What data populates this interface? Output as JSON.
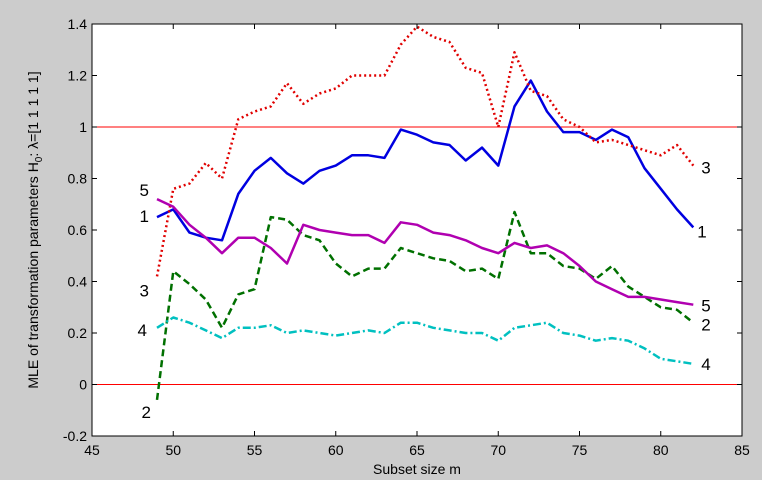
{
  "chart_data": {
    "type": "line",
    "title": "",
    "xlabel": "Subset size m",
    "ylabel": "MLE of transformation parameters H",
    "ylabel_sub": "0",
    "ylabel_tail": ": λ=[1 1 1 1 1]",
    "xlim": [
      45,
      85
    ],
    "ylim": [
      -0.2,
      1.4
    ],
    "xticks": [
      45,
      50,
      55,
      60,
      65,
      70,
      75,
      80,
      85
    ],
    "yticks": [
      -0.2,
      0,
      0.2,
      0.4,
      0.6,
      0.8,
      1,
      1.2,
      1.4
    ],
    "xtick_labels": [
      "45",
      "50",
      "55",
      "60",
      "65",
      "70",
      "75",
      "80",
      "85"
    ],
    "ytick_labels": [
      "-0.2",
      "0",
      "0.2",
      "0.4",
      "0.6",
      "0.8",
      "1",
      "1.2",
      "1.4"
    ],
    "reference_lines": [
      0,
      1
    ],
    "reference_color": "#ff0000",
    "x": [
      49,
      50,
      51,
      52,
      53,
      54,
      55,
      56,
      57,
      58,
      59,
      60,
      61,
      62,
      63,
      64,
      65,
      66,
      67,
      68,
      69,
      70,
      71,
      72,
      73,
      74,
      75,
      76,
      77,
      78,
      79,
      80,
      81,
      82
    ],
    "series": [
      {
        "name": "1",
        "color": "#0000e0",
        "dash": "",
        "width": 2.5,
        "values": [
          0.65,
          0.68,
          0.59,
          0.57,
          0.56,
          0.74,
          0.83,
          0.88,
          0.82,
          0.78,
          0.83,
          0.85,
          0.89,
          0.89,
          0.88,
          0.99,
          0.97,
          0.94,
          0.93,
          0.87,
          0.92,
          0.85,
          1.08,
          1.18,
          1.06,
          0.98,
          0.98,
          0.95,
          0.99,
          0.96,
          0.84,
          0.76,
          0.68,
          0.61
        ],
        "label_left": "1",
        "label_right": "1"
      },
      {
        "name": "2",
        "color": "#007000",
        "dash": "7,4",
        "width": 2.5,
        "values": [
          -0.06,
          0.44,
          0.39,
          0.33,
          0.22,
          0.35,
          0.37,
          0.65,
          0.64,
          0.58,
          0.56,
          0.47,
          0.42,
          0.45,
          0.45,
          0.53,
          0.51,
          0.49,
          0.48,
          0.44,
          0.45,
          0.41,
          0.67,
          0.51,
          0.51,
          0.46,
          0.45,
          0.41,
          0.46,
          0.38,
          0.34,
          0.3,
          0.29,
          0.24
        ],
        "label_left": "2",
        "label_right": "2"
      },
      {
        "name": "3",
        "color": "#e00000",
        "dash": "2,3",
        "width": 2.5,
        "values": [
          0.42,
          0.76,
          0.78,
          0.86,
          0.8,
          1.03,
          1.06,
          1.08,
          1.17,
          1.09,
          1.13,
          1.15,
          1.2,
          1.2,
          1.2,
          1.32,
          1.39,
          1.35,
          1.33,
          1.23,
          1.21,
          1.0,
          1.29,
          1.14,
          1.12,
          1.03,
          1.0,
          0.94,
          0.95,
          0.93,
          0.91,
          0.89,
          0.93,
          0.85
        ],
        "label_left": "3",
        "label_right": "3"
      },
      {
        "name": "4",
        "color": "#00c0c0",
        "dash": "8,3,2,3",
        "width": 2.5,
        "values": [
          0.22,
          0.26,
          0.24,
          0.21,
          0.18,
          0.22,
          0.22,
          0.23,
          0.2,
          0.21,
          0.2,
          0.19,
          0.2,
          0.21,
          0.2,
          0.24,
          0.24,
          0.22,
          0.21,
          0.2,
          0.2,
          0.17,
          0.22,
          0.23,
          0.24,
          0.2,
          0.19,
          0.17,
          0.18,
          0.17,
          0.14,
          0.1,
          0.09,
          0.08
        ],
        "label_left": "4",
        "label_right": "4"
      },
      {
        "name": "5",
        "color": "#b000b0",
        "dash": "",
        "width": 2.5,
        "values": [
          0.72,
          0.69,
          0.62,
          0.57,
          0.51,
          0.57,
          0.57,
          0.53,
          0.47,
          0.62,
          0.6,
          0.59,
          0.58,
          0.58,
          0.55,
          0.63,
          0.62,
          0.59,
          0.58,
          0.56,
          0.53,
          0.51,
          0.55,
          0.53,
          0.54,
          0.51,
          0.46,
          0.4,
          0.37,
          0.34,
          0.34,
          0.33,
          0.32,
          0.31
        ],
        "label_left": "5",
        "label_right": "5"
      }
    ],
    "grid": false,
    "legend": "none"
  }
}
